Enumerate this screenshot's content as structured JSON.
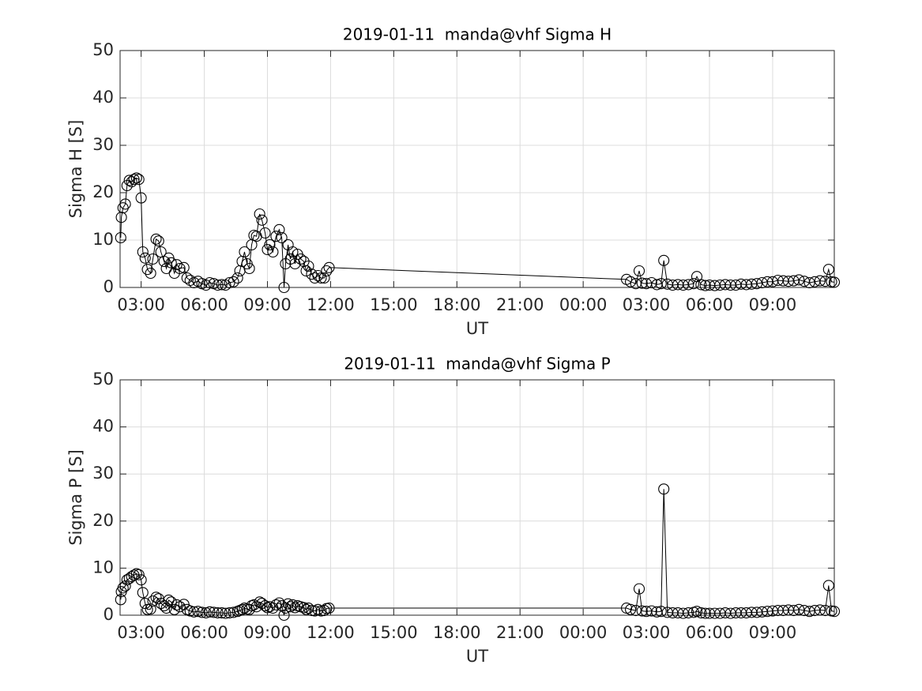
{
  "chart_data": [
    {
      "type": "line",
      "title": "2019-01-11  manda@vhf Sigma H",
      "xlabel": "UT",
      "ylabel": "Sigma H [S]",
      "x": [
        2.03,
        2.06,
        2.14,
        2.25,
        2.33,
        2.44,
        2.55,
        2.66,
        2.78,
        2.89,
        3.0,
        3.08,
        3.19,
        3.3,
        3.45,
        3.56,
        3.71,
        3.83,
        3.94,
        4.09,
        4.2,
        4.31,
        4.43,
        4.58,
        4.69,
        4.84,
        5.03,
        5.18,
        5.33,
        5.51,
        5.7,
        5.89,
        6.08,
        6.26,
        6.45,
        6.64,
        6.83,
        7.01,
        7.2,
        7.39,
        7.58,
        7.69,
        7.8,
        7.91,
        8.03,
        8.14,
        8.25,
        8.36,
        8.48,
        8.63,
        8.74,
        8.89,
        9.0,
        9.11,
        9.26,
        9.41,
        9.56,
        9.68,
        9.79,
        9.86,
        9.98,
        10.09,
        10.2,
        10.31,
        10.43,
        10.58,
        10.73,
        10.84,
        10.95,
        11.1,
        11.25,
        11.4,
        11.55,
        11.7,
        11.81,
        11.93,
        26.06,
        26.25,
        26.5,
        26.66,
        26.8,
        27.0,
        27.25,
        27.5,
        27.7,
        27.83,
        28.0,
        28.25,
        28.5,
        28.75,
        29.0,
        29.25,
        29.4,
        29.6,
        29.8,
        30.0,
        30.25,
        30.5,
        30.75,
        31.0,
        31.25,
        31.5,
        31.75,
        32.0,
        32.25,
        32.5,
        32.75,
        33.0,
        33.25,
        33.5,
        33.75,
        34.0,
        34.25,
        34.5,
        34.75,
        35.0,
        35.25,
        35.5,
        35.66,
        35.8,
        35.93
      ],
      "values": [
        10.5,
        14.8,
        16.8,
        17.6,
        21.5,
        22.6,
        22.3,
        22.8,
        23.1,
        22.8,
        18.9,
        7.5,
        6.2,
        3.8,
        3.0,
        6.0,
        10.2,
        9.8,
        7.5,
        5.5,
        4.0,
        6.2,
        5.2,
        3.0,
        4.8,
        4.0,
        4.2,
        2.0,
        1.5,
        1.0,
        1.3,
        0.8,
        0.5,
        1.0,
        0.8,
        0.5,
        0.6,
        0.5,
        1.0,
        1.2,
        2.0,
        3.5,
        5.5,
        7.5,
        5.0,
        4.0,
        9.0,
        11.0,
        10.8,
        15.5,
        14.2,
        11.5,
        8.0,
        9.0,
        7.5,
        10.8,
        12.2,
        10.5,
        0,
        5.0,
        9.0,
        6.0,
        7.5,
        5.0,
        7.0,
        6.0,
        5.5,
        3.5,
        4.5,
        2.8,
        2.0,
        2.5,
        2.0,
        2.0,
        3.5,
        4.2,
        1.7,
        1.2,
        0.8,
        3.5,
        0.9,
        0.8,
        1.0,
        0.6,
        0.8,
        5.7,
        0.7,
        0.5,
        0.6,
        0.5,
        0.6,
        0.8,
        2.3,
        0.6,
        0.4,
        0.5,
        0.4,
        0.5,
        0.6,
        0.5,
        0.5,
        0.7,
        0.6,
        0.7,
        0.8,
        1.0,
        1.2,
        1.2,
        1.5,
        1.4,
        1.3,
        1.4,
        1.6,
        1.3,
        1.0,
        1.2,
        1.4,
        1.3,
        3.8,
        1.2,
        1.1
      ],
      "color": "#000000",
      "marker": "circle",
      "xlim": [
        2.0,
        35.93
      ],
      "ylim": [
        0,
        50
      ],
      "xticks": [
        {
          "value": 3,
          "label": "03:00"
        },
        {
          "value": 6,
          "label": "06:00"
        },
        {
          "value": 9,
          "label": "09:00"
        },
        {
          "value": 12,
          "label": "12:00"
        },
        {
          "value": 15,
          "label": "15:00"
        },
        {
          "value": 18,
          "label": "18:00"
        },
        {
          "value": 21,
          "label": "21:00"
        },
        {
          "value": 24,
          "label": "00:00"
        },
        {
          "value": 27,
          "label": "03:00"
        },
        {
          "value": 30,
          "label": "06:00"
        },
        {
          "value": 33,
          "label": "09:00"
        }
      ],
      "yticks": [
        0,
        10,
        20,
        30,
        40,
        50
      ],
      "grid": true
    },
    {
      "type": "line",
      "title": "2019-01-11  manda@vhf Sigma P",
      "xlabel": "UT",
      "ylabel": "Sigma P [S]",
      "x": [
        2.03,
        2.06,
        2.14,
        2.25,
        2.33,
        2.44,
        2.55,
        2.66,
        2.78,
        2.89,
        3.0,
        3.08,
        3.19,
        3.3,
        3.45,
        3.56,
        3.71,
        3.83,
        3.94,
        4.09,
        4.2,
        4.31,
        4.43,
        4.58,
        4.69,
        4.84,
        5.03,
        5.18,
        5.33,
        5.51,
        5.7,
        5.89,
        6.08,
        6.26,
        6.45,
        6.64,
        6.83,
        7.01,
        7.2,
        7.39,
        7.58,
        7.69,
        7.8,
        7.91,
        8.03,
        8.14,
        8.25,
        8.36,
        8.48,
        8.63,
        8.74,
        8.89,
        9.0,
        9.11,
        9.26,
        9.41,
        9.56,
        9.68,
        9.79,
        9.86,
        9.98,
        10.09,
        10.2,
        10.31,
        10.43,
        10.58,
        10.73,
        10.84,
        10.95,
        11.1,
        11.25,
        11.4,
        11.55,
        11.7,
        11.81,
        11.93,
        26.06,
        26.25,
        26.5,
        26.66,
        26.8,
        27.0,
        27.25,
        27.5,
        27.7,
        27.83,
        28.0,
        28.25,
        28.5,
        28.75,
        29.0,
        29.25,
        29.4,
        29.6,
        29.8,
        30.0,
        30.25,
        30.5,
        30.75,
        31.0,
        31.25,
        31.5,
        31.75,
        32.0,
        32.25,
        32.5,
        32.75,
        33.0,
        33.25,
        33.5,
        33.75,
        34.0,
        34.25,
        34.5,
        34.75,
        35.0,
        35.25,
        35.5,
        35.66,
        35.8,
        35.93
      ],
      "values": [
        3.3,
        5.0,
        5.8,
        6.2,
        7.5,
        7.8,
        8.2,
        8.5,
        8.8,
        8.6,
        7.5,
        4.8,
        2.5,
        1.2,
        1.3,
        3.0,
        3.8,
        3.5,
        2.5,
        2.0,
        1.5,
        3.2,
        2.8,
        1.2,
        2.2,
        1.8,
        2.3,
        1.2,
        0.9,
        0.7,
        0.8,
        0.6,
        0.5,
        0.7,
        0.6,
        0.5,
        0.5,
        0.4,
        0.5,
        0.6,
        0.8,
        1.0,
        1.2,
        1.5,
        1.3,
        1.2,
        2.0,
        2.2,
        1.8,
        2.8,
        2.5,
        2.0,
        1.6,
        1.8,
        1.5,
        2.2,
        2.6,
        2.0,
        0,
        1.5,
        2.4,
        1.8,
        2.2,
        1.6,
        2.0,
        1.8,
        1.6,
        1.2,
        1.5,
        1.0,
        0.9,
        1.2,
        0.9,
        1.0,
        1.4,
        1.5,
        1.5,
        1.2,
        1.0,
        5.6,
        0.9,
        0.8,
        0.9,
        0.7,
        0.8,
        26.8,
        0.6,
        0.5,
        0.5,
        0.4,
        0.5,
        0.6,
        0.8,
        0.5,
        0.4,
        0.4,
        0.4,
        0.4,
        0.5,
        0.4,
        0.5,
        0.5,
        0.5,
        0.6,
        0.6,
        0.7,
        0.8,
        0.9,
        1.0,
        1.0,
        1.1,
        1.0,
        1.2,
        1.0,
        0.8,
        1.0,
        1.1,
        1.0,
        6.3,
        0.9,
        0.8
      ],
      "color": "#000000",
      "marker": "circle",
      "xlim": [
        2.0,
        35.93
      ],
      "ylim": [
        0,
        50
      ],
      "xticks": [
        {
          "value": 3,
          "label": "03:00"
        },
        {
          "value": 6,
          "label": "06:00"
        },
        {
          "value": 9,
          "label": "09:00"
        },
        {
          "value": 12,
          "label": "12:00"
        },
        {
          "value": 15,
          "label": "15:00"
        },
        {
          "value": 18,
          "label": "18:00"
        },
        {
          "value": 21,
          "label": "21:00"
        },
        {
          "value": 24,
          "label": "00:00"
        },
        {
          "value": 27,
          "label": "03:00"
        },
        {
          "value": 30,
          "label": "06:00"
        },
        {
          "value": 33,
          "label": "09:00"
        }
      ],
      "yticks": [
        0,
        10,
        20,
        30,
        40,
        50
      ],
      "grid": true
    }
  ]
}
